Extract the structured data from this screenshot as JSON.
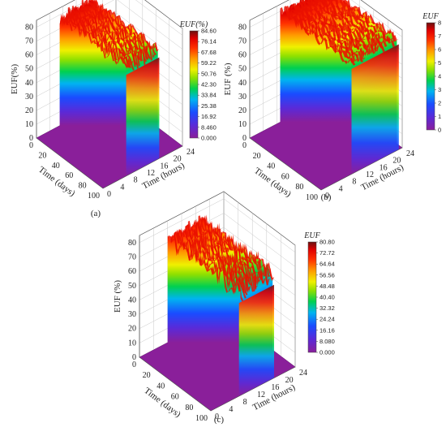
{
  "chart_data": [
    {
      "type": "surface3d",
      "panel_label": "(a)",
      "zlabel": "EUF(%)",
      "xlabel": "Time (days)",
      "ylabel": "Time (hours)",
      "x_ticks": [
        "0",
        "20",
        "40",
        "60",
        "80",
        "100"
      ],
      "y_ticks": [
        "0",
        "4",
        "8",
        "12",
        "16",
        "20",
        "24"
      ],
      "z_ticks": [
        "0",
        "10",
        "20",
        "30",
        "40",
        "50",
        "60",
        "70",
        "80"
      ],
      "xlim": [
        0,
        100
      ],
      "ylim": [
        0,
        24
      ],
      "zlim": [
        0,
        85
      ],
      "colorbar_title": "EUF(%)",
      "colorbar_ticks": [
        "84.60",
        "76.14",
        "67.68",
        "59.22",
        "50.76",
        "42.30",
        "33.84",
        "25.38",
        "16.92",
        "8.460",
        "0.000"
      ],
      "active_hours": [
        7,
        17
      ],
      "plateau_euf": 73,
      "peak_euf": 84.6
    },
    {
      "type": "surface3d",
      "panel_label": "(b)",
      "zlabel": "EUF (%)",
      "xlabel": "Time (days)",
      "ylabel": "Time (hours)",
      "x_ticks": [
        "0",
        "20",
        "40",
        "60",
        "80",
        "100"
      ],
      "y_ticks": [
        "0",
        "4",
        "8",
        "12",
        "16",
        "20",
        "24"
      ],
      "z_ticks": [
        "0",
        "10",
        "20",
        "30",
        "40",
        "50",
        "60",
        "70",
        "80"
      ],
      "xlim": [
        0,
        100
      ],
      "ylim": [
        0,
        24
      ],
      "zlim": [
        0,
        85
      ],
      "colorbar_title": "EUF",
      "colorbar_ticks": [
        "8",
        "7",
        "6",
        "5",
        "4",
        "3",
        "2",
        "1",
        "0"
      ],
      "active_hours": [
        9,
        23
      ],
      "plateau_euf": 76,
      "peak_euf": 85
    },
    {
      "type": "surface3d",
      "panel_label": "(c)",
      "zlabel": "EUF (%)",
      "xlabel": "Time (days)",
      "ylabel": "Time (hours)",
      "x_ticks": [
        "0",
        "20",
        "40",
        "60",
        "80",
        "100"
      ],
      "y_ticks": [
        "0",
        "4",
        "8",
        "12",
        "16",
        "20",
        "24"
      ],
      "z_ticks": [
        "0",
        "10",
        "20",
        "30",
        "40",
        "50",
        "60",
        "70",
        "80"
      ],
      "xlim": [
        0,
        100
      ],
      "ylim": [
        0,
        24
      ],
      "zlim": [
        0,
        85
      ],
      "colorbar_title": "EUF",
      "colorbar_ticks": [
        "80.80",
        "72.72",
        "64.64",
        "56.56",
        "48.48",
        "40.40",
        "32.32",
        "24.24",
        "16.16",
        "8.080",
        "0.000"
      ],
      "active_hours": [
        8,
        18
      ],
      "plateau_euf": 65,
      "peak_euf": 80.8
    }
  ]
}
